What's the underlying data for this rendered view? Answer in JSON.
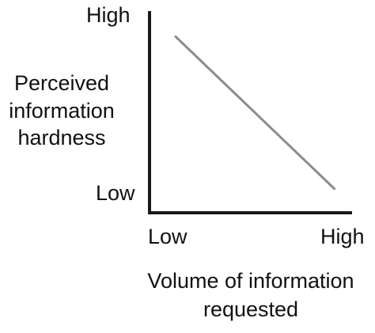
{
  "chart_data": {
    "type": "line",
    "title": "",
    "xlabel_lines": [
      "Volume of information",
      "requested"
    ],
    "ylabel_lines": [
      "Perceived",
      "information",
      "hardness"
    ],
    "x_ticks": [
      "Low",
      "High"
    ],
    "y_ticks": [
      "Low",
      "High"
    ],
    "xlim": [
      0,
      1
    ],
    "ylim": [
      0,
      1
    ],
    "grid": false,
    "series": [
      {
        "x": [
          0.13,
          0.92
        ],
        "y": [
          0.88,
          0.12
        ]
      }
    ],
    "colors": {
      "axis": "#1a1a1a",
      "line": "#8c8c8c",
      "text": "#111111"
    }
  }
}
